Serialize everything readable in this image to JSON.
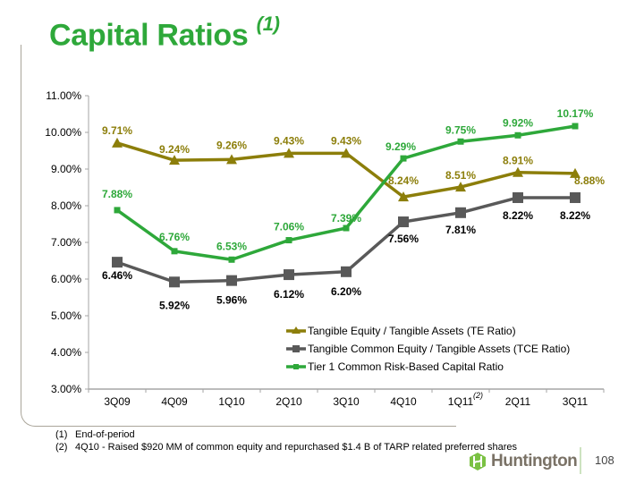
{
  "slide": {
    "title": "Capital Ratios",
    "title_footnote": "(1)",
    "footnotes": [
      {
        "num": "(1)",
        "text": "End-of-period"
      },
      {
        "num": "(2)",
        "text": "4Q10  - Raised $920 MM of common equity and repurchased $1.4 B of TARP related preferred shares"
      }
    ],
    "logo_text": "Huntington",
    "logo_icon": "huntington-hexagon-icon",
    "page_number": "108"
  },
  "chart_data": {
    "type": "line",
    "title": "Capital Ratios (1)",
    "xlabel": "",
    "ylabel": "",
    "categories": [
      "3Q09",
      "4Q09",
      "1Q10",
      "2Q10",
      "3Q10",
      "4Q10",
      "1Q11",
      "2Q11",
      "3Q11"
    ],
    "category_footnotes": {
      "1Q11": "(2)"
    },
    "ylim": [
      3.0,
      11.0
    ],
    "yticks": [
      "3.00%",
      "4.00%",
      "5.00%",
      "6.00%",
      "7.00%",
      "8.00%",
      "9.00%",
      "10.00%",
      "11.00%"
    ],
    "grid": false,
    "legend_position": "bottom-right",
    "series": [
      {
        "name": "Tangible Equity / Tangible Assets (TE Ratio)",
        "color": "#8c7e0a",
        "marker": "triangle",
        "values": [
          9.71,
          9.24,
          9.26,
          9.43,
          9.43,
          8.24,
          8.51,
          8.91,
          8.88
        ],
        "labels": [
          "9.71%",
          "9.24%",
          "9.26%",
          "9.43%",
          "9.43%",
          "8.24%",
          "8.51%",
          "8.91%",
          "8.88%"
        ]
      },
      {
        "name": "Tangible Common Equity / Tangible Assets (TCE Ratio)",
        "color": "#595959",
        "marker": "square",
        "label_color": "#000000",
        "values": [
          6.46,
          5.92,
          5.96,
          6.12,
          6.2,
          7.56,
          7.81,
          8.22,
          8.22
        ],
        "labels": [
          "6.46%",
          "5.92%",
          "5.96%",
          "6.12%",
          "6.20%",
          "7.56%",
          "7.81%",
          "8.22%",
          "8.22%"
        ]
      },
      {
        "name": "Tier 1 Common Risk-Based Capital Ratio",
        "color": "#2ea83a",
        "marker": "small-square",
        "values": [
          7.88,
          6.76,
          6.53,
          7.06,
          7.39,
          9.29,
          9.75,
          9.92,
          10.17
        ],
        "labels": [
          "7.88%",
          "6.76%",
          "6.53%",
          "7.06%",
          "7.39%",
          "9.29%",
          "9.75%",
          "9.92%",
          "10.17%"
        ]
      }
    ]
  }
}
